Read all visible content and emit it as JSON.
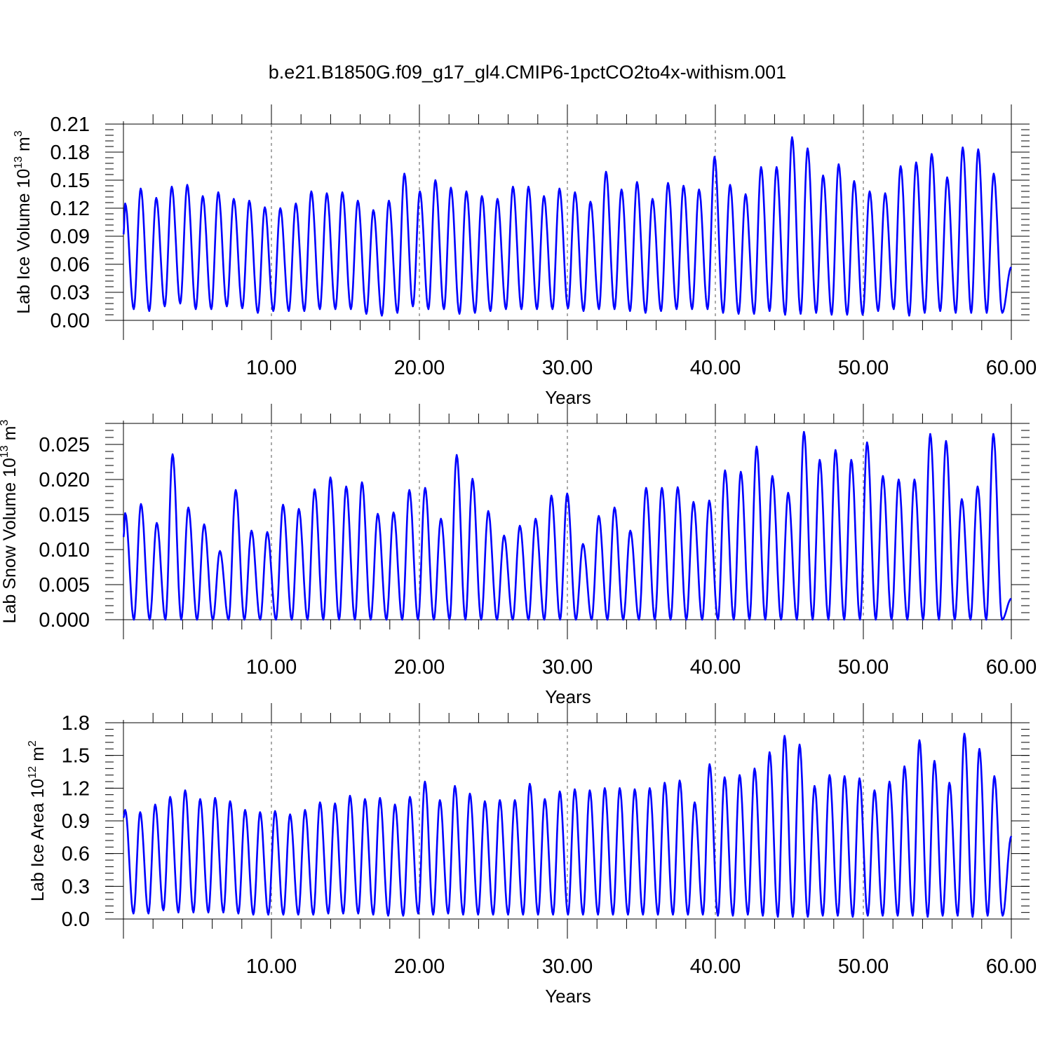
{
  "page_title": "b.e21.B1850G.f09_g17_gl4.CMIP6-1pctCO2to4x-withism.001",
  "series_color": "#0000ff",
  "chart_data": [
    {
      "type": "line",
      "ylabel": "Lab Ice Volume 10",
      "ylabel_exp": "13",
      "ylabel_unit": "m",
      "ylabel_unit_exp": "3",
      "xlabel": "Years",
      "xlim": [
        0,
        60
      ],
      "ylim": [
        0,
        0.21
      ],
      "x_ticks": [
        10,
        20,
        30,
        40,
        50,
        60
      ],
      "x_tick_labels": [
        "10.00",
        "20.00",
        "30.00",
        "40.00",
        "50.00",
        "60.00"
      ],
      "y_ticks": [
        0,
        0.03,
        0.06,
        0.09,
        0.12,
        0.15,
        0.18,
        0.21
      ],
      "y_tick_labels": [
        "0.00",
        "0.03",
        "0.06",
        "0.09",
        "0.12",
        "0.15",
        "0.18",
        "0.21"
      ],
      "grid_x": [
        10,
        20,
        30,
        40,
        50
      ],
      "annual_peaks": [
        0.125,
        0.141,
        0.131,
        0.143,
        0.145,
        0.133,
        0.137,
        0.13,
        0.128,
        0.121,
        0.12,
        0.125,
        0.138,
        0.136,
        0.137,
        0.128,
        0.118,
        0.128,
        0.157,
        0.138,
        0.15,
        0.142,
        0.138,
        0.133,
        0.13,
        0.143,
        0.143,
        0.133,
        0.141,
        0.137,
        0.127,
        0.159,
        0.14,
        0.148,
        0.13,
        0.147,
        0.144,
        0.14,
        0.175,
        0.145,
        0.135,
        0.164,
        0.164,
        0.196,
        0.184,
        0.155,
        0.167,
        0.149,
        0.138,
        0.136,
        0.165,
        0.169,
        0.178,
        0.153,
        0.185,
        0.183,
        0.157
      ],
      "annual_minima": [
        0.012,
        0.01,
        0.015,
        0.018,
        0.012,
        0.012,
        0.015,
        0.013,
        0.008,
        0.01,
        0.01,
        0.01,
        0.012,
        0.012,
        0.012,
        0.007,
        0.005,
        0.008,
        0.015,
        0.012,
        0.012,
        0.007,
        0.008,
        0.01,
        0.012,
        0.012,
        0.012,
        0.012,
        0.013,
        0.01,
        0.012,
        0.012,
        0.01,
        0.008,
        0.01,
        0.012,
        0.012,
        0.012,
        0.008,
        0.007,
        0.007,
        0.01,
        0.006,
        0.007,
        0.008,
        0.006,
        0.006,
        0.006,
        0.01,
        0.012,
        0.005,
        0.008,
        0.01,
        0.008,
        0.008,
        0.008,
        0.008
      ],
      "start_value": 0.092,
      "end_value": 0.057
    },
    {
      "type": "line",
      "ylabel": "Lab Snow Volume 10",
      "ylabel_exp": "13",
      "ylabel_unit": "m",
      "ylabel_unit_exp": "3",
      "xlabel": "Years",
      "xlim": [
        0,
        60
      ],
      "ylim": [
        0,
        0.028
      ],
      "x_ticks": [
        10,
        20,
        30,
        40,
        50,
        60
      ],
      "x_tick_labels": [
        "10.00",
        "20.00",
        "30.00",
        "40.00",
        "50.00",
        "60.00"
      ],
      "y_ticks": [
        0,
        0.005,
        0.01,
        0.015,
        0.02,
        0.025
      ],
      "y_tick_labels": [
        "0.000",
        "0.005",
        "0.010",
        "0.015",
        "0.020",
        "0.025"
      ],
      "grid_x": [
        10,
        20,
        30,
        40,
        50
      ],
      "annual_peaks": [
        0.0152,
        0.0165,
        0.0138,
        0.0236,
        0.016,
        0.0136,
        0.0098,
        0.0185,
        0.0127,
        0.0125,
        0.0164,
        0.0158,
        0.0186,
        0.0203,
        0.019,
        0.0196,
        0.0151,
        0.0153,
        0.0185,
        0.0188,
        0.0144,
        0.0235,
        0.0201,
        0.0155,
        0.012,
        0.0134,
        0.0144,
        0.0177,
        0.018,
        0.0108,
        0.0148,
        0.016,
        0.0127,
        0.0188,
        0.0188,
        0.0189,
        0.0168,
        0.017,
        0.0213,
        0.0211,
        0.0247,
        0.0205,
        0.0181,
        0.0268,
        0.0228,
        0.0242,
        0.0228,
        0.0253,
        0.0205,
        0.02,
        0.02,
        0.0265,
        0.0255,
        0.0172,
        0.019,
        0.0265
      ],
      "annual_minima": [
        0,
        0,
        0,
        0,
        0,
        0,
        0,
        0,
        0,
        0,
        0,
        0,
        0,
        0,
        0,
        0,
        0,
        0,
        0,
        0,
        0,
        0,
        0,
        0,
        0,
        0,
        0,
        0,
        0,
        0,
        0,
        0,
        0,
        0,
        0,
        0,
        0,
        0,
        0,
        0,
        0,
        0,
        0,
        0,
        0,
        0,
        0,
        0,
        0,
        0,
        0,
        0,
        0,
        0,
        0,
        0
      ],
      "start_value": 0.0118,
      "end_value": 0.003
    },
    {
      "type": "line",
      "ylabel": "Lab Ice Area 10",
      "ylabel_exp": "12",
      "ylabel_unit": "m",
      "ylabel_unit_exp": "2",
      "xlabel": "Years",
      "xlim": [
        0,
        60
      ],
      "ylim": [
        0,
        1.8
      ],
      "x_ticks": [
        10,
        20,
        30,
        40,
        50,
        60
      ],
      "x_tick_labels": [
        "10.00",
        "20.00",
        "30.00",
        "40.00",
        "50.00",
        "60.00"
      ],
      "y_ticks": [
        0,
        0.3,
        0.6,
        0.9,
        1.2,
        1.5,
        1.8
      ],
      "y_tick_labels": [
        "0.0",
        "0.3",
        "0.6",
        "0.9",
        "1.2",
        "1.5",
        "1.8"
      ],
      "grid_x": [
        10,
        20,
        30,
        40,
        50
      ],
      "annual_peaks": [
        1.0,
        0.98,
        1.05,
        1.12,
        1.18,
        1.1,
        1.11,
        1.08,
        1.0,
        0.98,
        0.99,
        0.96,
        1.0,
        1.07,
        1.06,
        1.13,
        1.1,
        1.11,
        1.05,
        1.12,
        1.26,
        1.09,
        1.22,
        1.15,
        1.08,
        1.09,
        1.09,
        1.24,
        1.1,
        1.17,
        1.19,
        1.18,
        1.2,
        1.2,
        1.19,
        1.2,
        1.25,
        1.27,
        1.07,
        1.42,
        1.3,
        1.32,
        1.38,
        1.53,
        1.68,
        1.6,
        1.22,
        1.32,
        1.31,
        1.29,
        1.18,
        1.26,
        1.4,
        1.64,
        1.45,
        1.25,
        1.7,
        1.56,
        1.31
      ],
      "annual_minima": [
        0.05,
        0.05,
        0.08,
        0.06,
        0.06,
        0.06,
        0.06,
        0.05,
        0.04,
        0.04,
        0.04,
        0.04,
        0.04,
        0.05,
        0.05,
        0.05,
        0.04,
        0.03,
        0.03,
        0.05,
        0.04,
        0.05,
        0.04,
        0.04,
        0.04,
        0.04,
        0.04,
        0.04,
        0.04,
        0.04,
        0.04,
        0.04,
        0.04,
        0.04,
        0.04,
        0.04,
        0.04,
        0.04,
        0.04,
        0.03,
        0.03,
        0.04,
        0.03,
        0.02,
        0.02,
        0.02,
        0.03,
        0.03,
        0.02,
        0.03,
        0.03,
        0.03,
        0.03,
        0.02,
        0.03,
        0.03,
        0.02,
        0.03,
        0.03
      ],
      "start_value": 0.93,
      "end_value": 0.76
    }
  ]
}
